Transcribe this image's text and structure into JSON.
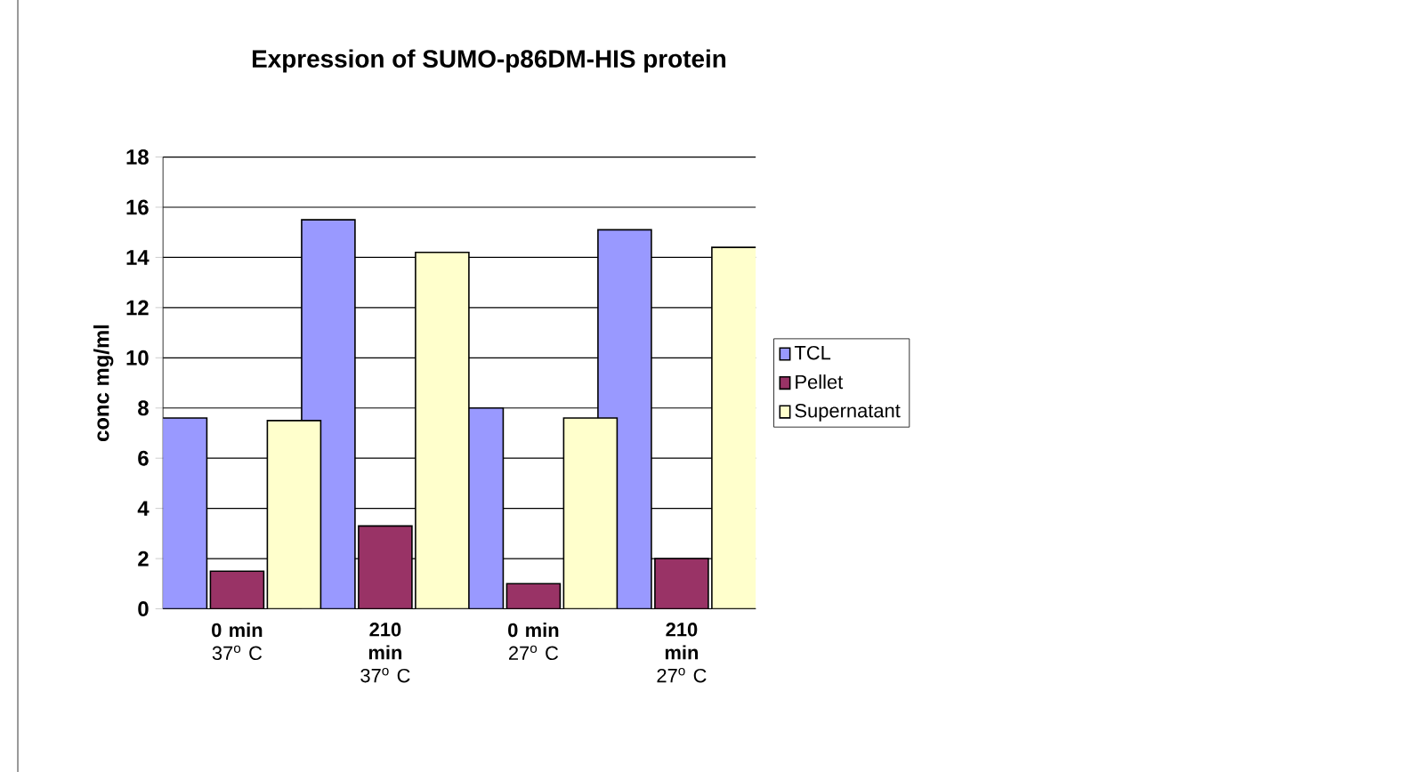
{
  "chart_data": {
    "type": "bar",
    "title": "Expression of SUMO-p86DM-HIS protein",
    "ylabel": "conc mg/ml",
    "categories": [
      "**0 min** 37$^{o}$ C",
      "**210 min** 37$^{o}$ C",
      "**0 min** 27$^{o}$ C",
      "**210 min** 27$^{o}$ C"
    ],
    "series": [
      {
        "name": "TCL",
        "color": "#9999ff",
        "values": [
          7.6,
          15.5,
          8.0,
          15.1
        ]
      },
      {
        "name": "Pellet",
        "color": "#993366",
        "values": [
          1.5,
          3.3,
          1.0,
          2.0
        ]
      },
      {
        "name": "Supernatant",
        "color": "#ffffcc",
        "values": [
          7.5,
          14.2,
          7.6,
          14.4
        ]
      }
    ],
    "ylim": [
      0,
      18
    ],
    "yticks": [
      0,
      2,
      4,
      6,
      8,
      10,
      12,
      14,
      16,
      18
    ],
    "grid": "y",
    "legend": "right"
  }
}
